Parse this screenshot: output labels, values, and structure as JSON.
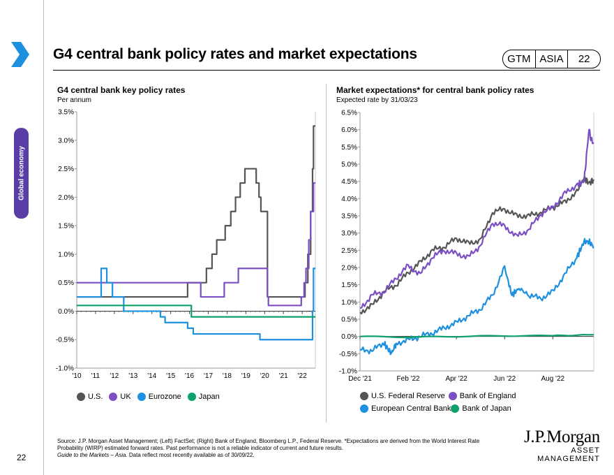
{
  "page": {
    "section_tab": "Global economy",
    "title": "G4 central bank policy rates and market expectations",
    "badge": [
      "GTM",
      "ASIA",
      "22"
    ],
    "page_number": "22",
    "footnote_line1": "Source: J.P. Morgan Asset Management; (Left) FactSet; (Right) Bank of England, Bloomberg L.P., Federal Reserve. *Expectations are derived from the World Interest Rate Probability (WIRP) estimated forward rates. Past performance is not a reliable indicator of current and future results.",
    "footnote_line2_italic": "Guide to the Markets – Asia.",
    "footnote_line2_rest": " Data reflect most recently available as of 30/09/22.",
    "logo_main": "J.P.Morgan",
    "logo_sub": "ASSET MANAGEMENT"
  },
  "colors": {
    "us": "#555555",
    "uk": "#7b4fc4",
    "eurozone": "#1e90e0",
    "japan": "#0ea16a",
    "accent": "#1e90e0",
    "tab": "#5a3ea8"
  },
  "chart_data": [
    {
      "type": "line",
      "title": "G4 central bank key policy rates",
      "subtitle": "Per annum",
      "ylim": [
        -1.0,
        3.5
      ],
      "yticks": [
        "3.5%",
        "3.0%",
        "2.5%",
        "2.0%",
        "1.5%",
        "1.0%",
        "0.5%",
        "0.0%",
        "-0.5%",
        "-1.0%"
      ],
      "xlim": [
        2010,
        2022.7
      ],
      "xticks": [
        "'10",
        "'11",
        "'12",
        "'13",
        "'14",
        "'15",
        "'16",
        "'17",
        "'18",
        "'19",
        "'20",
        "'21",
        "'22"
      ],
      "step": true,
      "series": [
        {
          "name": "U.S.",
          "color": "#555555",
          "x": [
            2010,
            2015.9,
            2016.9,
            2017.2,
            2017.45,
            2017.9,
            2018.2,
            2018.45,
            2018.7,
            2018.95,
            2019.55,
            2019.7,
            2019.8,
            2020.15,
            2022.15,
            2022.3,
            2022.45,
            2022.55,
            2022.6
          ],
          "y": [
            0.25,
            0.5,
            0.75,
            1.0,
            1.25,
            1.5,
            1.75,
            2.0,
            2.25,
            2.5,
            2.25,
            2.0,
            1.75,
            0.25,
            0.5,
            1.0,
            1.75,
            2.5,
            3.25
          ]
        },
        {
          "name": "UK",
          "color": "#7b4fc4",
          "x": [
            2010,
            2016.6,
            2017.85,
            2018.6,
            2020.15,
            2020.2,
            2021.95,
            2022.1,
            2022.2,
            2022.35,
            2022.45,
            2022.6
          ],
          "y": [
            0.5,
            0.25,
            0.5,
            0.75,
            0.25,
            0.1,
            0.25,
            0.5,
            0.75,
            1.25,
            1.75,
            2.25
          ]
        },
        {
          "name": "Eurozone",
          "color": "#1e90e0",
          "x": [
            2010,
            2011.3,
            2011.6,
            2011.9,
            2012.5,
            2014.45,
            2014.7,
            2015.9,
            2016.2,
            2019.75,
            2022.55,
            2022.6
          ],
          "y": [
            0.25,
            0.75,
            0.5,
            0.25,
            0.0,
            -0.1,
            -0.2,
            -0.3,
            -0.4,
            -0.5,
            0.0,
            0.75
          ]
        },
        {
          "name": "Japan",
          "color": "#0ea16a",
          "x": [
            2010,
            2016.1,
            2022.7
          ],
          "y": [
            0.1,
            -0.1,
            -0.1
          ]
        }
      ]
    },
    {
      "type": "line",
      "title": "Market expectations* for central bank policy rates",
      "subtitle": "Expected rate by 31/03/23",
      "ylim": [
        -1.0,
        6.5
      ],
      "yticks": [
        "6.5%",
        "6.0%",
        "5.5%",
        "5.0%",
        "4.5%",
        "4.0%",
        "3.5%",
        "3.0%",
        "2.5%",
        "2.0%",
        "1.5%",
        "1.0%",
        "0.5%",
        "0.0%",
        "-0.5%",
        "-1.0%"
      ],
      "xlim": [
        0,
        9.7
      ],
      "x_unit": "months since Dec '21",
      "xticks": [
        "Dec '21",
        "Feb '22",
        "Apr '22",
        "Jun '22",
        "Aug '22"
      ],
      "series": [
        {
          "name": "U.S. Federal Reserve",
          "color": "#555555",
          "x": [
            0,
            0.5,
            1,
            1.5,
            2,
            2.5,
            3,
            3.5,
            4,
            4.5,
            5,
            5.5,
            6,
            6.5,
            7,
            7.5,
            8,
            8.5,
            9,
            9.3,
            9.5,
            9.7
          ],
          "y": [
            0.7,
            0.9,
            1.3,
            1.5,
            1.85,
            2.15,
            2.5,
            2.6,
            2.85,
            2.7,
            2.8,
            3.6,
            3.7,
            3.5,
            3.5,
            3.6,
            3.75,
            3.9,
            4.2,
            4.6,
            4.45,
            4.55
          ]
        },
        {
          "name": "Bank of England",
          "color": "#7b4fc4",
          "x": [
            0,
            0.5,
            1,
            1.5,
            2,
            2.5,
            3,
            3.5,
            4,
            4.5,
            5,
            5.5,
            6,
            6.5,
            7,
            7.5,
            8,
            8.5,
            9,
            9.3,
            9.5,
            9.6,
            9.7
          ],
          "y": [
            0.8,
            1.2,
            1.3,
            1.7,
            2.05,
            1.8,
            2.3,
            2.5,
            2.4,
            2.3,
            2.65,
            3.3,
            3.2,
            2.9,
            3.1,
            3.55,
            3.75,
            4.15,
            4.4,
            4.5,
            6.0,
            5.7,
            5.6
          ]
        },
        {
          "name": "European Central Bank",
          "color": "#1e90e0",
          "x": [
            0,
            0.5,
            1,
            1.3,
            1.5,
            2,
            2.5,
            3,
            3.5,
            4,
            4.5,
            5,
            5.5,
            6,
            6.3,
            6.6,
            7,
            7.5,
            8,
            8.5,
            9,
            9.3,
            9.5,
            9.7
          ],
          "y": [
            -0.4,
            -0.4,
            -0.2,
            -0.5,
            -0.2,
            -0.1,
            0.0,
            0.1,
            0.25,
            0.4,
            0.6,
            0.8,
            1.2,
            2.0,
            1.2,
            1.4,
            1.2,
            1.1,
            1.3,
            1.8,
            2.3,
            2.75,
            2.75,
            2.6
          ]
        },
        {
          "name": "Bank of Japan",
          "color": "#0ea16a",
          "x": [
            0,
            2,
            4,
            6,
            8,
            9.7
          ],
          "y": [
            0.0,
            -0.02,
            0.0,
            0.02,
            0.02,
            0.05
          ]
        }
      ]
    }
  ]
}
